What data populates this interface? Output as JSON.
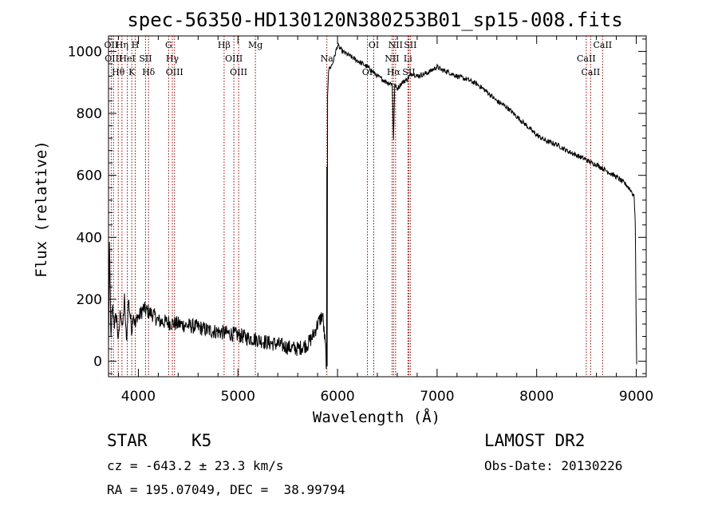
{
  "chart_data": {
    "type": "line",
    "title": "spec-56350-HD130120N380253B01_sp15-008.fits",
    "xlabel": "Wavelength (Å)",
    "ylabel": "Flux (relative)",
    "xlim": [
      3700,
      9100
    ],
    "ylim": [
      -50,
      1050
    ],
    "xticks": [
      4000,
      5000,
      6000,
      7000,
      8000,
      9000
    ],
    "yticks": [
      0,
      200,
      400,
      600,
      800,
      1000
    ],
    "grid": false,
    "series": [
      {
        "points": [
          [
            3700,
            40
          ],
          [
            3710,
            360
          ],
          [
            3725,
            60
          ],
          [
            3740,
            180
          ],
          [
            3760,
            120
          ],
          [
            3780,
            150
          ],
          [
            3800,
            60
          ],
          [
            3820,
            170
          ],
          [
            3840,
            100
          ],
          [
            3860,
            200
          ],
          [
            3880,
            60
          ],
          [
            3900,
            200
          ],
          [
            3920,
            140
          ],
          [
            3935,
            100
          ],
          [
            3950,
            160
          ],
          [
            3970,
            110
          ],
          [
            3990,
            150
          ],
          [
            4000,
            140
          ],
          [
            4050,
            170
          ],
          [
            4100,
            160
          ],
          [
            4150,
            150
          ],
          [
            4200,
            130
          ],
          [
            4300,
            125
          ],
          [
            4400,
            120
          ],
          [
            4500,
            115
          ],
          [
            4600,
            110
          ],
          [
            4700,
            100
          ],
          [
            4800,
            95
          ],
          [
            4900,
            90
          ],
          [
            5000,
            85
          ],
          [
            5100,
            75
          ],
          [
            5200,
            70
          ],
          [
            5300,
            60
          ],
          [
            5400,
            55
          ],
          [
            5500,
            45
          ],
          [
            5600,
            40
          ],
          [
            5700,
            55
          ],
          [
            5750,
            80
          ],
          [
            5800,
            120
          ],
          [
            5850,
            150
          ],
          [
            5880,
            40
          ],
          [
            5890,
            -20
          ],
          [
            5893,
            620
          ],
          [
            5896,
            -20
          ],
          [
            5900,
            860
          ],
          [
            5910,
            940
          ],
          [
            5950,
            960
          ],
          [
            6000,
            1020
          ],
          [
            6050,
            1000
          ],
          [
            6100,
            990
          ],
          [
            6150,
            980
          ],
          [
            6200,
            970
          ],
          [
            6250,
            960
          ],
          [
            6300,
            950
          ],
          [
            6350,
            935
          ],
          [
            6400,
            920
          ],
          [
            6450,
            910
          ],
          [
            6500,
            900
          ],
          [
            6550,
            895
          ],
          [
            6562,
            720
          ],
          [
            6575,
            890
          ],
          [
            6600,
            880
          ],
          [
            6650,
            900
          ],
          [
            6700,
            910
          ],
          [
            6750,
            930
          ],
          [
            6800,
            920
          ],
          [
            6900,
            930
          ],
          [
            7000,
            950
          ],
          [
            7050,
            940
          ],
          [
            7100,
            935
          ],
          [
            7200,
            920
          ],
          [
            7300,
            910
          ],
          [
            7400,
            895
          ],
          [
            7500,
            870
          ],
          [
            7600,
            840
          ],
          [
            7700,
            820
          ],
          [
            7800,
            790
          ],
          [
            7900,
            760
          ],
          [
            8000,
            730
          ],
          [
            8100,
            710
          ],
          [
            8200,
            700
          ],
          [
            8300,
            680
          ],
          [
            8400,
            665
          ],
          [
            8500,
            650
          ],
          [
            8550,
            640
          ],
          [
            8600,
            635
          ],
          [
            8700,
            615
          ],
          [
            8800,
            595
          ],
          [
            8900,
            570
          ],
          [
            8950,
            550
          ],
          [
            8980,
            530
          ],
          [
            8990,
            440
          ],
          [
            9000,
            100
          ],
          [
            9005,
            -10
          ]
        ]
      }
    ],
    "lines": [
      {
        "x": 3727,
        "label": "OII"
      },
      {
        "x": 3750,
        "label": "OIII"
      },
      {
        "x": 3798,
        "label": "Hθ"
      },
      {
        "x": 3835,
        "label": "Hη"
      },
      {
        "x": 3889,
        "label": "HeI"
      },
      {
        "x": 3934,
        "label": "K"
      },
      {
        "x": 3969,
        "label": "H"
      },
      {
        "x": 4072,
        "label": "SII"
      },
      {
        "x": 4102,
        "label": "Hδ"
      },
      {
        "x": 4304,
        "label": "G"
      },
      {
        "x": 4341,
        "label": "Hγ"
      },
      {
        "x": 4363,
        "label": "OIII"
      },
      {
        "x": 4861,
        "label": "Hβ"
      },
      {
        "x": 4959,
        "label": "OIII"
      },
      {
        "x": 5007,
        "label": "OIII"
      },
      {
        "x": 5175,
        "label": "Mg"
      },
      {
        "x": 5893,
        "label": "Na"
      },
      {
        "x": 6300,
        "label": "OI"
      },
      {
        "x": 6364,
        "label": "OI"
      },
      {
        "x": 6548,
        "label": "NII"
      },
      {
        "x": 6563,
        "label": "Hα"
      },
      {
        "x": 6583,
        "label": "NII"
      },
      {
        "x": 6707,
        "label": "Li"
      },
      {
        "x": 6716,
        "label": "SII"
      },
      {
        "x": 6731,
        "label": "SII"
      },
      {
        "x": 8498,
        "label": "CaII"
      },
      {
        "x": 8542,
        "label": "CaII"
      },
      {
        "x": 8662,
        "label": "CaII"
      }
    ]
  },
  "info": {
    "object_class": "STAR",
    "subclass": "K5",
    "survey": "LAMOST DR2",
    "cz": "cz = -643.2 ± 23.3 km/s",
    "obs_date": "Obs-Date: 20130226",
    "coords": "RA = 195.07049, DEC =  38.99794"
  }
}
